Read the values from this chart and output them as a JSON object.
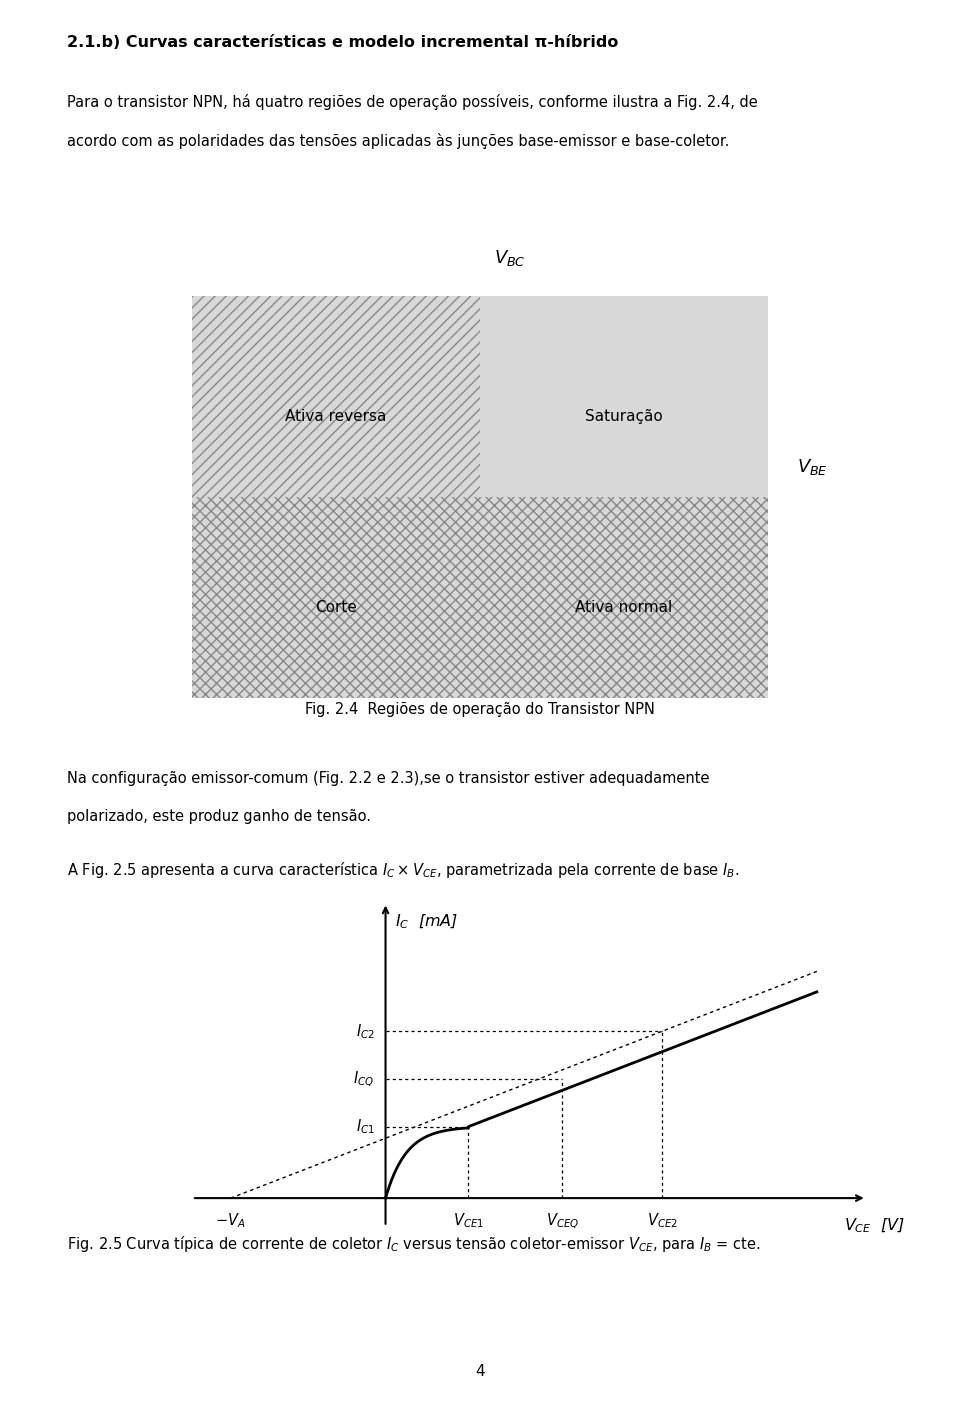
{
  "title": "2.1.b) Curvas características e modelo incremental π-híbrido",
  "para1_line1": "Para o transistor NPN, há quatro regiões de operação possíveis, conforme ilustra a Fig. 2.4, de",
  "para1_line2": "acordo com as polaridades das tensões aplicadas às junções base-emissor e base-coletor.",
  "fig24_caption": "Fig. 2.4  Regiões de operação do Transistor NPN",
  "quadrant_labels": [
    "Ativa reversa",
    "Saturação",
    "Corte",
    "Ativa normal"
  ],
  "vbc_label": "$V_{BC}$",
  "vbe_label": "$V_{BE}$",
  "para2_line1": "Na configuração emissor-comum (Fig. 2.2 e 2.3),se o transistor estiver adequadamente",
  "para2_line2": "polarizado, este produz ganho de tensão.",
  "para3": "A Fig. 2.5 apresenta a curva característica $I_C \\times V_{CE}$, parametrizada pela corrente de base $I_B$.",
  "ic_label": "$I_C$  [mA]",
  "vce_label": "$V_{CE}$  [V]",
  "ic2_label": "$I_{C2}$",
  "icq_label": "$I_{CQ}$",
  "ic1_label": "$I_{C1}$",
  "vce1_label": "$V_{CE1}$",
  "vceq_label": "$V_{CEQ}$",
  "vce2_label": "$V_{CE2}$",
  "va_label": "$- V_A$",
  "fig25_caption": "Fig. 2.5 Curva típica de corrente de coletor $I_C$ versus tensão coletor-emissor $V_{CE}$, para $I_B$ = cte.",
  "page_number": "4",
  "bg_color": "#ffffff",
  "text_color": "#000000",
  "ul_facecolor": "#d8d8d8",
  "ur_facecolor": "#d8d8d8",
  "ll_facecolor": "#d8d8d8",
  "lr_facecolor": "#d8d8d8",
  "ul_hatch": "///",
  "ur_hatch": "",
  "ll_hatch": "xxx",
  "lr_hatch": "xxx"
}
